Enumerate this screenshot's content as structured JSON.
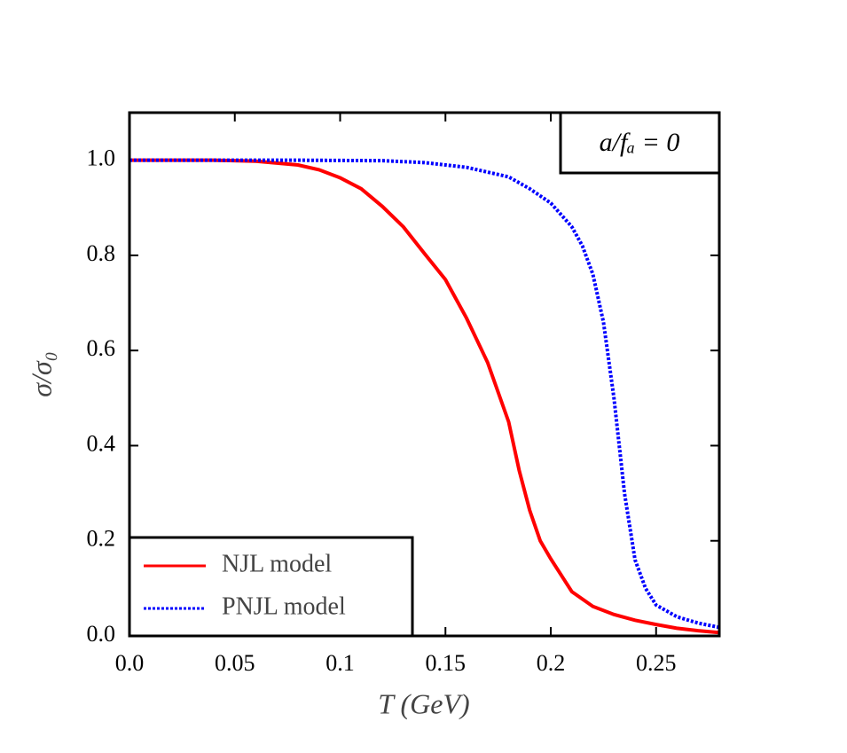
{
  "chart_data": {
    "type": "line",
    "xlabel": "T (GeV)",
    "ylabel": "σ/σ₀",
    "annotation": "a/fₐ = 0",
    "xlim": [
      0,
      0.28
    ],
    "ylim": [
      0,
      1.1
    ],
    "xticks": [
      {
        "value": 0,
        "label": "0.0"
      },
      0.05,
      0.1,
      0.15,
      0.2,
      0.25
    ],
    "yticks": [
      {
        "value": 0,
        "label": "0.0"
      },
      0.2,
      0.4,
      0.6,
      0.8,
      {
        "value": 1,
        "label": "1.0"
      }
    ],
    "legend": "lower left",
    "series": [
      {
        "name": "NJL model",
        "color": "#ff0000",
        "style": "solid",
        "x": [
          0,
          0.02,
          0.04,
          0.06,
          0.08,
          0.09,
          0.1,
          0.11,
          0.12,
          0.13,
          0.14,
          0.15,
          0.16,
          0.17,
          0.18,
          0.185,
          0.19,
          0.195,
          0.2,
          0.21,
          0.22,
          0.23,
          0.24,
          0.25,
          0.26,
          0.27,
          0.28
        ],
        "values": [
          1,
          1,
          1,
          0.998,
          0.99,
          0.98,
          0.963,
          0.94,
          0.903,
          0.86,
          0.804,
          0.749,
          0.668,
          0.575,
          0.45,
          0.348,
          0.264,
          0.2,
          0.162,
          0.093,
          0.062,
          0.045,
          0.033,
          0.024,
          0.016,
          0.011,
          0.007
        ]
      },
      {
        "name": "PNJL model",
        "color": "#0000ff",
        "style": "dotted",
        "x": [
          0,
          0.04,
          0.08,
          0.12,
          0.14,
          0.16,
          0.18,
          0.19,
          0.2,
          0.21,
          0.215,
          0.22,
          0.225,
          0.23,
          0.235,
          0.24,
          0.245,
          0.25,
          0.26,
          0.27,
          0.28
        ],
        "values": [
          1,
          1,
          1,
          0.999,
          0.995,
          0.985,
          0.965,
          0.94,
          0.91,
          0.86,
          0.82,
          0.76,
          0.66,
          0.5,
          0.3,
          0.16,
          0.1,
          0.065,
          0.04,
          0.027,
          0.018
        ]
      }
    ]
  }
}
